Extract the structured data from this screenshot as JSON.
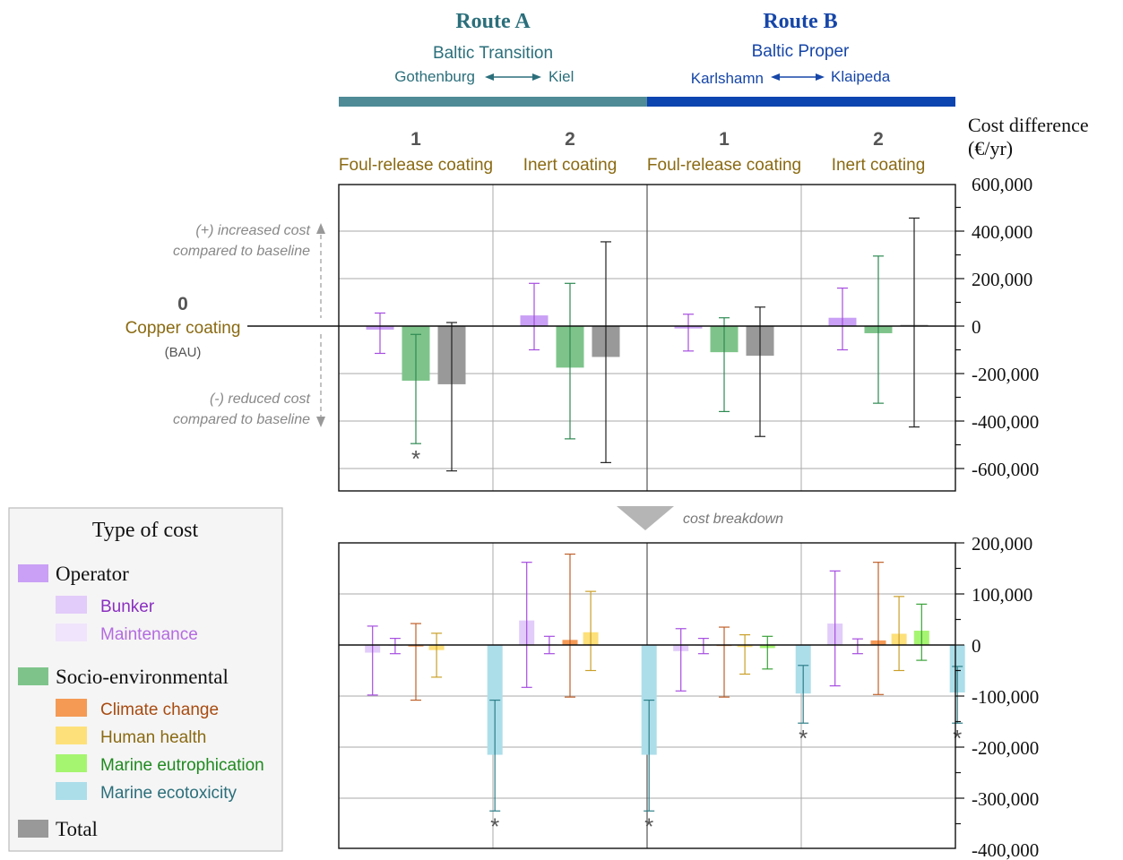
{
  "header": {
    "routes": [
      {
        "title": "Route A",
        "subtitle": "Baltic Transition",
        "port_from": "Gothenburg",
        "port_to": "Kiel",
        "color": "#2b6f7b",
        "bar_color": "#4e8b96"
      },
      {
        "title": "Route B",
        "subtitle": "Baltic Proper",
        "port_from": "Karlshamn",
        "port_to": "Klaipeda",
        "color": "#1646a8",
        "bar_color": "#0c44b0"
      }
    ],
    "scenarios": [
      {
        "num": "1",
        "label": "Foul-release coating"
      },
      {
        "num": "2",
        "label": "Inert coating"
      },
      {
        "num": "1",
        "label": "Foul-release coating"
      },
      {
        "num": "2",
        "label": "Inert coating"
      }
    ],
    "scenario_color": "#8a6a12"
  },
  "y_axis_title": [
    "Cost difference",
    "(€/yr)"
  ],
  "annotations": {
    "increase": [
      "(+) increased cost",
      "compared to baseline"
    ],
    "decrease": [
      "(-) reduced cost",
      "compared to baseline"
    ],
    "baseline_zero": "0",
    "baseline_label": "Copper coating",
    "baseline_sub": "(BAU)",
    "breakdown": "cost breakdown",
    "significance_mark": "*"
  },
  "legend": {
    "title": "Type of cost",
    "items": [
      {
        "label": "Operator",
        "color": "#c9a0f5",
        "text_color": "#111111",
        "indent": false,
        "serif": true
      },
      {
        "label": "Bunker",
        "color": "#e2ccfa",
        "text_color": "#8a2fc0",
        "indent": true,
        "serif": false
      },
      {
        "label": "Maintenance",
        "color": "#efe4fc",
        "text_color": "#b46be0",
        "indent": true,
        "serif": false
      },
      {
        "label": "Socio-environmental",
        "color": "#7ec48a",
        "text_color": "#111111",
        "indent": false,
        "serif": true
      },
      {
        "label": "Climate change",
        "color": "#f59a55",
        "text_color": "#a84b10",
        "indent": true,
        "serif": false
      },
      {
        "label": "Human health",
        "color": "#fde07a",
        "text_color": "#8a6a12",
        "indent": true,
        "serif": false
      },
      {
        "label": "Marine eutrophication",
        "color": "#a6f570",
        "text_color": "#1f8a1f",
        "indent": true,
        "serif": false
      },
      {
        "label": "Marine ecotoxicity",
        "color": "#acdeea",
        "text_color": "#2b6f7b",
        "indent": true,
        "serif": false
      },
      {
        "label": "Total",
        "color": "#999999",
        "text_color": "#111111",
        "indent": false,
        "serif": true
      }
    ]
  },
  "chart_data": [
    {
      "type": "bar",
      "title": "",
      "ylabel": "Cost difference (€/yr)",
      "ylim": [
        -700000,
        600000
      ],
      "yticks": [
        600000,
        400000,
        200000,
        0,
        -200000,
        -400000,
        -600000
      ],
      "ytick_labels": [
        "600,000",
        "400,000",
        "200,000",
        "0",
        "-200,000",
        "-400,000",
        "-600,000"
      ],
      "groups": [
        "Route A 1",
        "Route A 2",
        "Route B 1",
        "Route B 2"
      ],
      "series": [
        {
          "name": "Operator",
          "color": "#c9a0f5",
          "error_color": "#a64ee0",
          "values": [
            -15000,
            45000,
            -10000,
            35000
          ],
          "err_low": [
            -115000,
            -100000,
            -105000,
            -100000
          ],
          "err_high": [
            55000,
            180000,
            50000,
            160000
          ],
          "significant": [
            false,
            false,
            false,
            false
          ]
        },
        {
          "name": "Socio-environmental",
          "color": "#7ec48a",
          "error_color": "#2e8a52",
          "values": [
            -230000,
            -175000,
            -110000,
            -30000
          ],
          "err_low": [
            -495000,
            -475000,
            -360000,
            -325000
          ],
          "err_high": [
            -35000,
            180000,
            35000,
            295000
          ],
          "significant": [
            true,
            false,
            false,
            false
          ]
        },
        {
          "name": "Total",
          "color": "#999999",
          "error_color": "#222222",
          "values": [
            -245000,
            -130000,
            -125000,
            5000
          ],
          "err_low": [
            -610000,
            -575000,
            -465000,
            -425000
          ],
          "err_high": [
            15000,
            355000,
            80000,
            455000
          ],
          "significant": [
            false,
            false,
            false,
            false
          ]
        }
      ]
    },
    {
      "type": "bar",
      "title": "",
      "ylabel": "Cost difference (€/yr)",
      "ylim": [
        -400000,
        200000
      ],
      "yticks": [
        200000,
        100000,
        0,
        -100000,
        -200000,
        -300000,
        -400000
      ],
      "ytick_labels": [
        "200,000",
        "100,000",
        "0",
        "-100,000",
        "-200,000",
        "-300,000",
        "-400,000"
      ],
      "groups": [
        "Route A 1",
        "Route A 2",
        "Route B 1",
        "Route B 2"
      ],
      "series": [
        {
          "name": "Bunker",
          "color": "#e2ccfa",
          "error_color": "#a64ee0",
          "values": [
            -15000,
            48000,
            -12000,
            42000
          ],
          "err_low": [
            -98000,
            -83000,
            -90000,
            -80000
          ],
          "err_high": [
            37000,
            162000,
            32000,
            145000
          ],
          "significant": [
            false,
            false,
            false,
            false
          ]
        },
        {
          "name": "Maintenance",
          "color": "#efe4fc",
          "error_color": "#a64ee0",
          "values": [
            -2000,
            2000,
            -2000,
            2000
          ],
          "err_low": [
            -17000,
            -17000,
            -17000,
            -17000
          ],
          "err_high": [
            13000,
            17000,
            13000,
            12000
          ],
          "significant": [
            false,
            false,
            false,
            false
          ]
        },
        {
          "name": "Climate change",
          "color": "#f59a55",
          "error_color": "#c0602a",
          "values": [
            -3000,
            10000,
            -2000,
            9000
          ],
          "err_low": [
            -108000,
            -102000,
            -102000,
            -97000
          ],
          "err_high": [
            42000,
            178000,
            35000,
            162000
          ],
          "significant": [
            false,
            false,
            false,
            false
          ]
        },
        {
          "name": "Human health",
          "color": "#fde07a",
          "error_color": "#caa02a",
          "values": [
            -10000,
            25000,
            -4000,
            22000
          ],
          "err_low": [
            -63000,
            -50000,
            -57000,
            -50000
          ],
          "err_high": [
            23000,
            105000,
            20000,
            95000
          ],
          "significant": [
            false,
            false,
            false,
            false
          ]
        },
        {
          "name": "Marine eutrophication",
          "color": "#a6f570",
          "error_color": "#3aa23a",
          "values": [
            0,
            0,
            -6000,
            28000
          ],
          "err_low": [
            null,
            null,
            -47000,
            -30000
          ],
          "err_high": [
            null,
            null,
            17000,
            80000
          ],
          "significant": [
            false,
            false,
            false,
            false
          ]
        },
        {
          "name": "Marine ecotoxicity",
          "color": "#acdeea",
          "error_color": "#2e7f88",
          "values": [
            -215000,
            -215000,
            -95000,
            -93000
          ],
          "err_low": [
            -325000,
            -325000,
            -153000,
            -153000
          ],
          "err_high": [
            -108000,
            -108000,
            -40000,
            -42000
          ],
          "significant": [
            true,
            true,
            true,
            true
          ]
        }
      ]
    }
  ]
}
